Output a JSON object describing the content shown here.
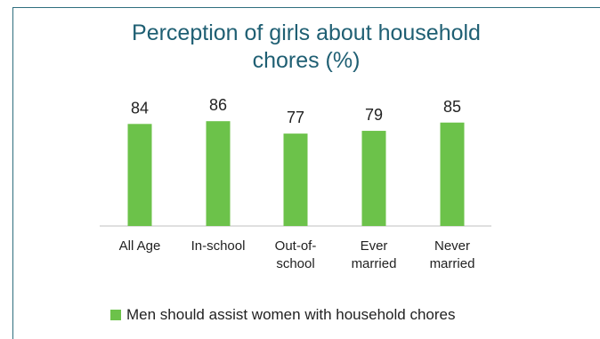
{
  "chart_data": {
    "type": "bar",
    "title_lines": [
      "Perception of girls about household",
      "chores (%)"
    ],
    "categories": [
      [
        "All Age"
      ],
      [
        "In-school"
      ],
      [
        "Out-of-",
        "school"
      ],
      [
        "Ever",
        "married"
      ],
      [
        "Never",
        "married"
      ]
    ],
    "series": [
      {
        "name": "Men should assist women with household chores",
        "values": [
          84,
          86,
          77,
          79,
          85
        ],
        "color": "#6cc24a"
      }
    ],
    "axis_color": "#bfbfbf",
    "grid": false,
    "legend_position": "bottom-left"
  }
}
